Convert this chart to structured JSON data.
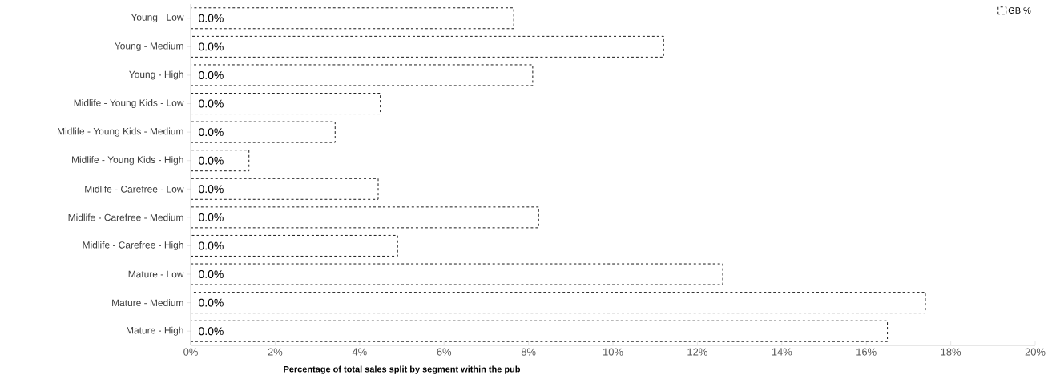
{
  "chart_data": {
    "type": "bar",
    "orientation": "horizontal",
    "xlabel": "Percentage of total sales split by segment within the pub",
    "categories": [
      "Young - Low",
      "Young - Medium",
      "Young - High",
      "Midlife - Young Kids - Low",
      "Midlife - Young Kids - Medium",
      "Midlife - Young Kids - High",
      "Midlife - Carefree - Low",
      "Midlife - Carefree - Medium",
      "Midlife - Carefree - High",
      "Mature - Low",
      "Mature - Medium",
      "Mature - High"
    ],
    "series": [
      {
        "name": "GB %",
        "color": "#ffffff",
        "values": [
          7.65,
          11.2,
          8.1,
          4.49,
          3.42,
          1.38,
          4.44,
          8.24,
          4.9,
          12.6,
          17.4,
          16.5
        ]
      },
      {
        "color": "#ffffff",
        "values": [
          0,
          0,
          0,
          0,
          0,
          0,
          0,
          0,
          0,
          0,
          0,
          0
        ],
        "value_labels": [
          "0.0%",
          "0.0%",
          "0.0%",
          "0.0%",
          "0.0%",
          "0.0%",
          "0.0%",
          "0.0%",
          "0.0%",
          "0.0%",
          "0.0%",
          "0.0%"
        ]
      }
    ],
    "xlim": [
      0,
      20
    ],
    "xticks": [
      {
        "value": 0,
        "label": "0%"
      },
      {
        "value": 2,
        "label": "2%"
      },
      {
        "value": 4,
        "label": "4%"
      },
      {
        "value": 6,
        "label": "6%"
      },
      {
        "value": 8,
        "label": "8%"
      },
      {
        "value": 10,
        "label": "10%"
      },
      {
        "value": 12,
        "label": "12%"
      },
      {
        "value": 14,
        "label": "14%"
      },
      {
        "value": 16,
        "label": "16%"
      },
      {
        "value": 18,
        "label": "18%"
      },
      {
        "value": 20,
        "label": "20%"
      }
    ],
    "line_style": "dashed",
    "legend": "top right"
  }
}
